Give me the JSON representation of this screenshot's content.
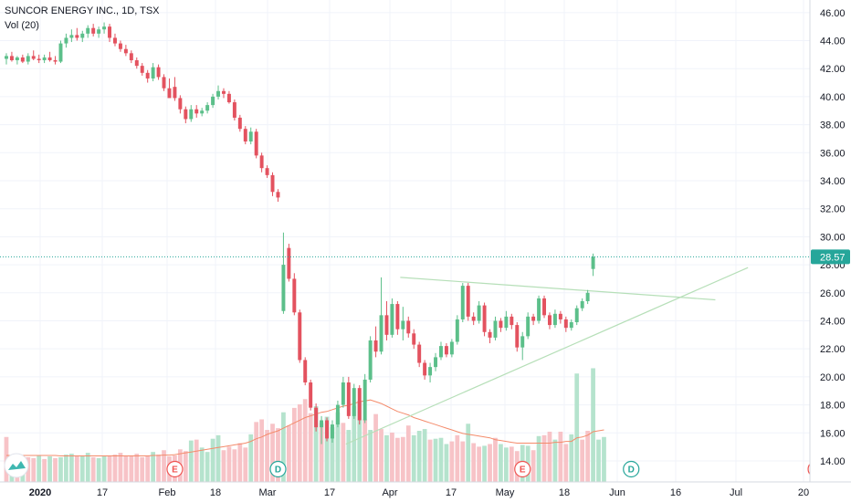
{
  "header": {
    "symbol_line": "SUNCOR ENERGY INC., 1D, TSX",
    "volume_label": "Vol (20)"
  },
  "colors": {
    "up": "#26a69a",
    "down": "#ef5350",
    "up_candle": "#5cbf8a",
    "down_candle": "#e3525f",
    "up_volume": "#b5e3cd",
    "down_volume": "#f7c3c7",
    "volume_ma": "#f48b6b",
    "trendline": "#b6dfb8",
    "last_price": "#26a69a",
    "grid": "#f0f3fa",
    "axis_text": "#131722"
  },
  "chart_data": {
    "type": "candlestick",
    "title": "SUNCOR ENERGY INC., 1D, TSX",
    "price_axis": {
      "ticks": [
        "14.00",
        "16.00",
        "18.00",
        "20.00",
        "22.00",
        "24.00",
        "26.00",
        "28.00",
        "30.00",
        "32.00",
        "34.00",
        "36.00",
        "38.00",
        "40.00",
        "42.00",
        "44.00",
        "46.00"
      ],
      "range": [
        12.5,
        46.9
      ]
    },
    "time_axis": {
      "labels": [
        "2020",
        "17",
        "Feb",
        "18",
        "Mar",
        "17",
        "Apr",
        "17",
        "May",
        "18",
        "Jun",
        "16",
        "Jul",
        "20"
      ],
      "bold_labels": [
        "2020"
      ]
    },
    "last_price": "28.57",
    "candles": [
      {
        "o": 42.7,
        "h": 43.1,
        "l": 42.3,
        "c": 42.9
      },
      {
        "o": 42.9,
        "h": 43.2,
        "l": 42.5,
        "c": 42.6
      },
      {
        "o": 42.6,
        "h": 42.9,
        "l": 42.3,
        "c": 42.8
      },
      {
        "o": 42.8,
        "h": 43.0,
        "l": 42.4,
        "c": 42.5
      },
      {
        "o": 42.5,
        "h": 43.1,
        "l": 42.3,
        "c": 42.9
      },
      {
        "o": 42.9,
        "h": 43.3,
        "l": 42.6,
        "c": 42.7
      },
      {
        "o": 42.7,
        "h": 43.0,
        "l": 42.4,
        "c": 42.6
      },
      {
        "o": 42.6,
        "h": 43.0,
        "l": 42.4,
        "c": 42.8
      },
      {
        "o": 42.8,
        "h": 43.2,
        "l": 42.5,
        "c": 42.6
      },
      {
        "o": 42.6,
        "h": 42.9,
        "l": 42.3,
        "c": 42.5
      },
      {
        "o": 42.5,
        "h": 44.0,
        "l": 42.4,
        "c": 43.8
      },
      {
        "o": 43.8,
        "h": 44.5,
        "l": 43.5,
        "c": 44.2
      },
      {
        "o": 44.2,
        "h": 44.8,
        "l": 43.9,
        "c": 44.4
      },
      {
        "o": 44.4,
        "h": 44.9,
        "l": 44.0,
        "c": 44.2
      },
      {
        "o": 44.2,
        "h": 44.7,
        "l": 43.9,
        "c": 44.5
      },
      {
        "o": 44.5,
        "h": 45.1,
        "l": 44.2,
        "c": 44.9
      },
      {
        "o": 44.9,
        "h": 45.2,
        "l": 44.3,
        "c": 44.5
      },
      {
        "o": 44.5,
        "h": 45.0,
        "l": 44.2,
        "c": 44.8
      },
      {
        "o": 44.8,
        "h": 45.3,
        "l": 44.5,
        "c": 45.0
      },
      {
        "o": 45.0,
        "h": 45.2,
        "l": 43.9,
        "c": 44.2
      },
      {
        "o": 44.2,
        "h": 44.5,
        "l": 43.6,
        "c": 43.8
      },
      {
        "o": 43.8,
        "h": 44.0,
        "l": 43.2,
        "c": 43.4
      },
      {
        "o": 43.4,
        "h": 43.7,
        "l": 42.9,
        "c": 43.1
      },
      {
        "o": 43.1,
        "h": 43.3,
        "l": 42.4,
        "c": 42.6
      },
      {
        "o": 42.6,
        "h": 42.8,
        "l": 42.0,
        "c": 42.2
      },
      {
        "o": 42.2,
        "h": 42.4,
        "l": 41.5,
        "c": 41.7
      },
      {
        "o": 41.7,
        "h": 41.9,
        "l": 41.0,
        "c": 41.3
      },
      {
        "o": 41.3,
        "h": 42.4,
        "l": 41.1,
        "c": 42.1
      },
      {
        "o": 42.1,
        "h": 42.3,
        "l": 41.2,
        "c": 41.4
      },
      {
        "o": 41.4,
        "h": 41.6,
        "l": 40.4,
        "c": 40.6
      },
      {
        "o": 40.6,
        "h": 41.3,
        "l": 40.2,
        "c": 39.9
      },
      {
        "o": 40.7,
        "h": 41.4,
        "l": 39.7,
        "c": 39.9
      },
      {
        "o": 39.9,
        "h": 40.1,
        "l": 38.8,
        "c": 39.1
      },
      {
        "o": 39.1,
        "h": 39.3,
        "l": 38.1,
        "c": 38.4
      },
      {
        "o": 38.4,
        "h": 39.4,
        "l": 38.2,
        "c": 39.1
      },
      {
        "o": 39.1,
        "h": 39.4,
        "l": 38.5,
        "c": 38.8
      },
      {
        "o": 38.8,
        "h": 39.2,
        "l": 38.6,
        "c": 39.0
      },
      {
        "o": 39.0,
        "h": 39.6,
        "l": 38.8,
        "c": 39.4
      },
      {
        "o": 39.4,
        "h": 40.2,
        "l": 39.2,
        "c": 40.0
      },
      {
        "o": 40.0,
        "h": 40.8,
        "l": 39.8,
        "c": 40.4
      },
      {
        "o": 40.4,
        "h": 40.6,
        "l": 39.9,
        "c": 40.2
      },
      {
        "o": 40.2,
        "h": 40.4,
        "l": 39.5,
        "c": 39.6
      },
      {
        "o": 39.6,
        "h": 39.8,
        "l": 38.3,
        "c": 38.5
      },
      {
        "o": 38.5,
        "h": 38.7,
        "l": 37.5,
        "c": 37.7
      },
      {
        "o": 37.7,
        "h": 37.9,
        "l": 36.6,
        "c": 36.8
      },
      {
        "o": 36.8,
        "h": 37.8,
        "l": 36.6,
        "c": 37.5
      },
      {
        "o": 37.5,
        "h": 37.7,
        "l": 35.6,
        "c": 35.8
      },
      {
        "o": 35.8,
        "h": 36.0,
        "l": 34.6,
        "c": 34.9
      },
      {
        "o": 34.9,
        "h": 35.1,
        "l": 34.2,
        "c": 34.4
      },
      {
        "o": 34.4,
        "h": 34.6,
        "l": 32.9,
        "c": 33.2
      },
      {
        "o": 33.2,
        "h": 33.4,
        "l": 32.5,
        "c": 32.8
      },
      {
        "o": 24.7,
        "h": 30.3,
        "l": 24.5,
        "c": 28.0
      },
      {
        "o": 29.2,
        "h": 29.5,
        "l": 26.8,
        "c": 27.0
      },
      {
        "o": 27.0,
        "h": 27.4,
        "l": 24.4,
        "c": 24.6
      },
      {
        "o": 24.6,
        "h": 24.8,
        "l": 21.0,
        "c": 21.2
      },
      {
        "o": 21.2,
        "h": 21.4,
        "l": 19.4,
        "c": 19.6
      },
      {
        "o": 19.6,
        "h": 19.8,
        "l": 17.6,
        "c": 17.8
      },
      {
        "o": 17.8,
        "h": 18.1,
        "l": 16.1,
        "c": 16.4
      },
      {
        "o": 16.4,
        "h": 17.2,
        "l": 15.2,
        "c": 16.9
      },
      {
        "o": 16.9,
        "h": 17.1,
        "l": 15.4,
        "c": 15.6
      },
      {
        "o": 15.6,
        "h": 16.9,
        "l": 15.3,
        "c": 16.6
      },
      {
        "o": 16.6,
        "h": 18.3,
        "l": 16.4,
        "c": 18.0
      },
      {
        "o": 18.0,
        "h": 20.0,
        "l": 17.8,
        "c": 19.6
      },
      {
        "o": 19.6,
        "h": 20.0,
        "l": 17.0,
        "c": 17.2
      },
      {
        "o": 17.2,
        "h": 19.5,
        "l": 17.0,
        "c": 19.2
      },
      {
        "o": 19.2,
        "h": 19.4,
        "l": 16.6,
        "c": 16.9
      },
      {
        "o": 16.9,
        "h": 20.2,
        "l": 16.7,
        "c": 19.8
      },
      {
        "o": 19.8,
        "h": 22.9,
        "l": 19.6,
        "c": 22.6
      },
      {
        "o": 22.6,
        "h": 23.6,
        "l": 21.4,
        "c": 21.8
      },
      {
        "o": 21.8,
        "h": 27.1,
        "l": 21.6,
        "c": 24.4
      },
      {
        "o": 24.4,
        "h": 25.4,
        "l": 22.6,
        "c": 23.0
      },
      {
        "o": 23.0,
        "h": 25.6,
        "l": 22.8,
        "c": 25.2
      },
      {
        "o": 25.2,
        "h": 25.4,
        "l": 23.0,
        "c": 23.4
      },
      {
        "o": 23.4,
        "h": 25.0,
        "l": 22.6,
        "c": 24.0
      },
      {
        "o": 24.0,
        "h": 24.3,
        "l": 22.8,
        "c": 23.1
      },
      {
        "o": 23.1,
        "h": 23.4,
        "l": 22.0,
        "c": 22.3
      },
      {
        "o": 22.3,
        "h": 22.5,
        "l": 20.7,
        "c": 21.0
      },
      {
        "o": 21.0,
        "h": 21.2,
        "l": 19.8,
        "c": 20.1
      },
      {
        "o": 20.1,
        "h": 21.0,
        "l": 19.6,
        "c": 20.7
      },
      {
        "o": 20.7,
        "h": 21.7,
        "l": 20.4,
        "c": 21.4
      },
      {
        "o": 21.4,
        "h": 22.5,
        "l": 21.2,
        "c": 22.2
      },
      {
        "o": 22.2,
        "h": 22.4,
        "l": 21.4,
        "c": 21.6
      },
      {
        "o": 21.6,
        "h": 22.7,
        "l": 21.4,
        "c": 22.5
      },
      {
        "o": 22.5,
        "h": 24.4,
        "l": 22.3,
        "c": 24.1
      },
      {
        "o": 24.1,
        "h": 26.7,
        "l": 23.9,
        "c": 26.5
      },
      {
        "o": 26.5,
        "h": 26.7,
        "l": 24.0,
        "c": 24.3
      },
      {
        "o": 24.3,
        "h": 24.6,
        "l": 23.7,
        "c": 24.0
      },
      {
        "o": 24.0,
        "h": 25.4,
        "l": 23.8,
        "c": 25.1
      },
      {
        "o": 25.1,
        "h": 25.3,
        "l": 22.9,
        "c": 23.2
      },
      {
        "o": 23.2,
        "h": 23.4,
        "l": 22.4,
        "c": 22.8
      },
      {
        "o": 22.8,
        "h": 24.3,
        "l": 22.6,
        "c": 24.0
      },
      {
        "o": 24.0,
        "h": 24.2,
        "l": 23.2,
        "c": 23.5
      },
      {
        "o": 23.5,
        "h": 24.7,
        "l": 23.3,
        "c": 24.3
      },
      {
        "o": 24.3,
        "h": 24.5,
        "l": 23.4,
        "c": 23.7
      },
      {
        "o": 23.7,
        "h": 23.9,
        "l": 21.8,
        "c": 22.1
      },
      {
        "o": 22.1,
        "h": 23.2,
        "l": 21.2,
        "c": 22.9
      },
      {
        "o": 22.9,
        "h": 24.6,
        "l": 22.7,
        "c": 24.3
      },
      {
        "o": 24.3,
        "h": 24.5,
        "l": 23.7,
        "c": 24.0
      },
      {
        "o": 24.0,
        "h": 25.8,
        "l": 23.8,
        "c": 25.6
      },
      {
        "o": 25.6,
        "h": 25.8,
        "l": 24.2,
        "c": 24.4
      },
      {
        "o": 24.4,
        "h": 24.6,
        "l": 23.4,
        "c": 23.7
      },
      {
        "o": 23.7,
        "h": 24.8,
        "l": 23.5,
        "c": 24.5
      },
      {
        "o": 24.5,
        "h": 24.7,
        "l": 23.8,
        "c": 24.1
      },
      {
        "o": 24.1,
        "h": 24.3,
        "l": 23.2,
        "c": 23.5
      },
      {
        "o": 23.5,
        "h": 24.1,
        "l": 23.3,
        "c": 23.9
      },
      {
        "o": 23.9,
        "h": 25.1,
        "l": 23.7,
        "c": 24.9
      },
      {
        "o": 24.9,
        "h": 25.6,
        "l": 24.7,
        "c": 25.4
      },
      {
        "o": 25.4,
        "h": 26.2,
        "l": 25.2,
        "c": 26.0
      },
      {
        "o": 27.7,
        "h": 28.8,
        "l": 27.2,
        "c": 28.57
      }
    ],
    "volumes": [
      5.1,
      3.0,
      3.2,
      2.6,
      2.8,
      2.7,
      3.0,
      2.6,
      2.9,
      2.7,
      2.8,
      3.1,
      3.2,
      2.9,
      3.0,
      3.3,
      2.8,
      2.7,
      2.9,
      3.0,
      3.1,
      3.3,
      2.9,
      3.0,
      3.2,
      2.8,
      3.0,
      3.4,
      3.1,
      3.6,
      2.9,
      3.0,
      3.7,
      3.5,
      4.7,
      4.8,
      3.9,
      3.4,
      4.9,
      5.3,
      3.6,
      4.0,
      3.7,
      4.4,
      3.9,
      5.4,
      6.8,
      7.1,
      5.9,
      6.6,
      6.1,
      7.9,
      6.4,
      8.4,
      8.8,
      9.4,
      7.8,
      8.6,
      6.7,
      7.4,
      6.2,
      7.9,
      6.7,
      5.9,
      8.6,
      9.2,
      7.1,
      5.9,
      7.7,
      6.0,
      5.3,
      5.6,
      5.0,
      5.1,
      6.4,
      5.3,
      5.8,
      6.0,
      4.8,
      4.9,
      5.0,
      4.3,
      4.6,
      5.3,
      4.6,
      6.6,
      4.4,
      4.0,
      4.1,
      4.3,
      5.0,
      4.3,
      3.9,
      4.0,
      3.5,
      4.2,
      4.1,
      3.6,
      5.2,
      5.3,
      5.7,
      4.8,
      5.7,
      4.3,
      5.4,
      12.3,
      4.8,
      5.8,
      12.9,
      4.8,
      5.1
    ],
    "volume_direction": [
      "down",
      "up",
      "down",
      "up",
      "down",
      "down",
      "up",
      "down",
      "up",
      "down",
      "up",
      "up",
      "up",
      "down",
      "up",
      "up",
      "down",
      "up",
      "up",
      "down",
      "down",
      "down",
      "down",
      "down",
      "down",
      "down",
      "down",
      "up",
      "down",
      "down",
      "down",
      "down",
      "down",
      "down",
      "up",
      "down",
      "up",
      "up",
      "up",
      "up",
      "down",
      "down",
      "down",
      "down",
      "down",
      "up",
      "down",
      "down",
      "down",
      "down",
      "down",
      "up",
      "down",
      "down",
      "down",
      "down",
      "down",
      "up",
      "down",
      "up",
      "up",
      "up",
      "down",
      "up",
      "up",
      "up",
      "down",
      "up",
      "down",
      "down",
      "up",
      "down",
      "down",
      "down",
      "down",
      "up",
      "up",
      "up",
      "down",
      "up",
      "up",
      "up",
      "down",
      "down",
      "down",
      "up",
      "down",
      "down",
      "up",
      "down",
      "down",
      "up",
      "up",
      "down",
      "down",
      "up",
      "up",
      "down",
      "up",
      "down",
      "down",
      "up",
      "down",
      "down",
      "up",
      "up",
      "down",
      "down",
      "up",
      "up",
      "up"
    ],
    "volume_ma": [
      3.0,
      3.0,
      3.0,
      3.0,
      3.0,
      3.0,
      3.0,
      3.0,
      3.0,
      3.0,
      2.95,
      2.95,
      2.95,
      2.95,
      2.95,
      2.95,
      2.95,
      2.95,
      2.95,
      2.95,
      2.95,
      2.95,
      2.95,
      2.95,
      2.95,
      2.95,
      2.95,
      3.0,
      3.0,
      3.05,
      3.05,
      3.1,
      3.2,
      3.3,
      3.4,
      3.5,
      3.6,
      3.7,
      3.8,
      3.9,
      4.0,
      4.1,
      4.2,
      4.3,
      4.4,
      4.6,
      4.9,
      5.1,
      5.4,
      5.6,
      5.8,
      6.1,
      6.4,
      6.7,
      7.0,
      7.3,
      7.5,
      7.7,
      7.9,
      8.0,
      8.2,
      8.4,
      8.6,
      8.7,
      8.9,
      9.1,
      9.2,
      9.3,
      9.1,
      8.9,
      8.6,
      8.3,
      8.0,
      7.8,
      7.6,
      7.3,
      7.1,
      6.9,
      6.7,
      6.5,
      6.3,
      6.1,
      5.9,
      5.7,
      5.5,
      5.4,
      5.3,
      5.2,
      5.1,
      5.0,
      4.8,
      4.7,
      4.6,
      4.5,
      4.4,
      4.4,
      4.4,
      4.4,
      4.4,
      4.4,
      4.4,
      4.5,
      4.5,
      4.6,
      4.6,
      5.0,
      5.1,
      5.3,
      5.7,
      5.8,
      5.9
    ],
    "trendlines": [
      {
        "from": {
          "bar": 73,
          "price": 27.1
        },
        "to": {
          "bar": 131,
          "price": 25.5
        }
      },
      {
        "from": {
          "bar": 63,
          "price": 15.2
        },
        "to": {
          "bar": 137,
          "price": 27.8
        }
      }
    ],
    "event_markers": [
      {
        "label": "E",
        "kind": "earnings",
        "bar": 31
      },
      {
        "label": "D",
        "kind": "dividend",
        "bar": 50
      },
      {
        "label": "E",
        "kind": "earnings",
        "bar": 95
      },
      {
        "label": "D",
        "kind": "dividend",
        "bar": 115
      },
      {
        "label": "E",
        "kind": "earnings",
        "bar": 149
      }
    ]
  }
}
